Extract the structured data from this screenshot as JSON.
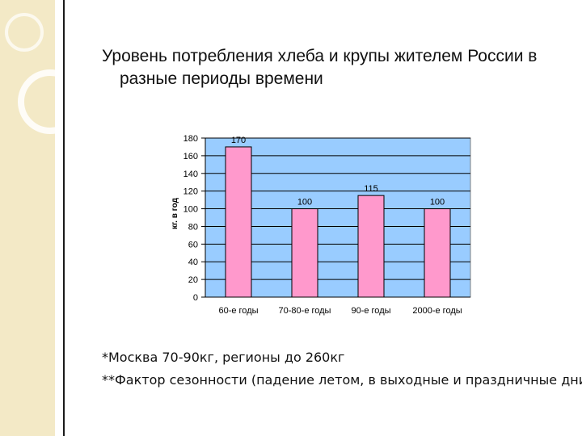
{
  "slide": {
    "title_line1": "Уровень потребления хлеба и крупы жителем России в",
    "title_line2": "разные периоды времени",
    "note1": "*Москва 70-90кг, регионы до 260кг",
    "note2": "**Фактор сезонности (падение летом, в выходные и праздничные дни)"
  },
  "colors": {
    "plot_bg": "#99ccff",
    "bar_fill": "#ff99cc",
    "bar_stroke": "#000000",
    "side_band": "#f3e9c6"
  },
  "chart_data": {
    "type": "bar",
    "title": "",
    "xlabel": "",
    "ylabel": "кг. в год",
    "categories": [
      "60-e годы",
      "70-80-e годы",
      "90-e годы",
      "2000-e годы"
    ],
    "values": [
      170,
      100,
      115,
      100
    ],
    "data_labels": [
      "170",
      "100",
      "115",
      "100"
    ],
    "ylim": [
      0,
      180
    ],
    "yticks": [
      0,
      20,
      40,
      60,
      80,
      100,
      120,
      140,
      160,
      180
    ],
    "grid": true,
    "legend": "none"
  }
}
